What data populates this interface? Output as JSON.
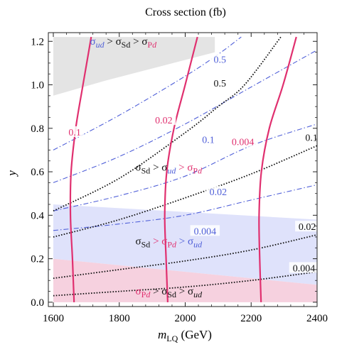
{
  "chart_data": {
    "type": "line",
    "title": "Cross section (fb)",
    "xlabel_main": "m",
    "xlabel_sub": "LQ",
    "xlabel_unit": " (GeV)",
    "ylabel": "y",
    "xlim": [
      1600,
      2400
    ],
    "ylim": [
      -0.02,
      1.24
    ],
    "xticks": [
      "1600",
      "1800",
      "2000",
      "2200",
      "2400"
    ],
    "yticks": [
      "0.0",
      "0.2",
      "0.4",
      "0.6",
      "0.8",
      "1.0",
      "1.2"
    ],
    "colors": {
      "Pd": "#e0306f",
      "ud": "#4f5fd8",
      "Sd": "#111111",
      "region_gray": "#e4e4e4",
      "region_blue": "#dfe2fb",
      "region_pink": "#f6d1df"
    },
    "regions": [
      {
        "id": "gray",
        "polygon": [
          [
            1600,
            1.18
          ],
          [
            1600,
            0.95
          ],
          [
            1760,
            1.02
          ],
          [
            2090,
            1.15
          ],
          [
            2090,
            1.22
          ],
          [
            1600,
            1.22
          ]
        ]
      },
      {
        "id": "blue",
        "polygon": [
          [
            1600,
            0.45
          ],
          [
            2400,
            0.38
          ],
          [
            2400,
            0.08
          ],
          [
            1600,
            0.2
          ]
        ]
      },
      {
        "id": "pink",
        "polygon": [
          [
            1600,
            0.2
          ],
          [
            2400,
            0.08
          ],
          [
            2400,
            0.0
          ],
          [
            1600,
            0.0
          ]
        ]
      }
    ],
    "series": [
      {
        "group": "Pd",
        "style": "solid",
        "label": "0.1",
        "points": [
          [
            1663,
            0.0
          ],
          [
            1658,
            0.2
          ],
          [
            1652,
            0.4
          ],
          [
            1654,
            0.6
          ],
          [
            1668,
            0.8
          ],
          [
            1690,
            1.0
          ],
          [
            1715,
            1.22
          ]
        ]
      },
      {
        "group": "Pd",
        "style": "solid",
        "label": "0.02",
        "points": [
          [
            1947,
            0.0
          ],
          [
            1942,
            0.2
          ],
          [
            1938,
            0.4
          ],
          [
            1944,
            0.6
          ],
          [
            1966,
            0.8
          ],
          [
            2000,
            1.0
          ],
          [
            2037,
            1.22
          ]
        ]
      },
      {
        "group": "Pd",
        "style": "solid",
        "label": "0.004",
        "points": [
          [
            2230,
            0.0
          ],
          [
            2226,
            0.2
          ],
          [
            2224,
            0.4
          ],
          [
            2231,
            0.6
          ],
          [
            2255,
            0.8
          ],
          [
            2297,
            1.0
          ],
          [
            2337,
            1.22
          ]
        ]
      },
      {
        "group": "ud",
        "style": "dashdot",
        "label": "0.5",
        "points": [
          [
            1600,
            0.7
          ],
          [
            1800,
            0.86
          ],
          [
            2000,
            1.04
          ],
          [
            2100,
            1.14
          ],
          [
            2170,
            1.22
          ]
        ]
      },
      {
        "group": "ud",
        "style": "dashdot",
        "label": "0.1",
        "points": [
          [
            1600,
            0.55
          ],
          [
            1800,
            0.67
          ],
          [
            2000,
            0.82
          ],
          [
            2200,
            0.99
          ],
          [
            2400,
            1.16
          ]
        ]
      },
      {
        "group": "ud",
        "style": "dashdot",
        "label": "0.02",
        "points": [
          [
            1600,
            0.42
          ],
          [
            1800,
            0.49
          ],
          [
            2000,
            0.58
          ],
          [
            2200,
            0.72
          ],
          [
            2400,
            0.82
          ]
        ]
      },
      {
        "group": "ud",
        "style": "dashdot",
        "label": "0.004",
        "points": [
          [
            1600,
            0.33
          ],
          [
            1800,
            0.36
          ],
          [
            2000,
            0.4
          ],
          [
            2200,
            0.47
          ],
          [
            2400,
            0.54
          ]
        ]
      },
      {
        "group": "Sd",
        "style": "dotted",
        "label": "0.5",
        "points": [
          [
            1600,
            0.42
          ],
          [
            1800,
            0.57
          ],
          [
            2000,
            0.78
          ],
          [
            2100,
            0.9
          ],
          [
            2180,
            1.0
          ],
          [
            2290,
            1.22
          ]
        ]
      },
      {
        "group": "Sd",
        "style": "dotted",
        "label": "0.1",
        "points": [
          [
            1600,
            0.3
          ],
          [
            1800,
            0.38
          ],
          [
            2000,
            0.48
          ],
          [
            2200,
            0.59
          ],
          [
            2400,
            0.72
          ]
        ]
      },
      {
        "group": "Sd",
        "style": "dotted",
        "label": "0.02",
        "points": [
          [
            1600,
            0.11
          ],
          [
            1800,
            0.15
          ],
          [
            2000,
            0.19
          ],
          [
            2200,
            0.24
          ],
          [
            2400,
            0.31
          ]
        ]
      },
      {
        "group": "Sd",
        "style": "dotted",
        "label": "0.004",
        "points": [
          [
            1600,
            0.03
          ],
          [
            1800,
            0.05
          ],
          [
            2000,
            0.07
          ],
          [
            2200,
            0.1
          ],
          [
            2400,
            0.14
          ]
        ]
      }
    ],
    "curve_labels": [
      {
        "group": "Pd",
        "text": "0.1",
        "at": [
          1665,
          0.78
        ]
      },
      {
        "group": "Pd",
        "text": "0.02",
        "at": [
          1935,
          0.835
        ]
      },
      {
        "group": "Pd",
        "text": "0.004",
        "at": [
          2175,
          0.735
        ]
      },
      {
        "group": "ud",
        "text": "0.5",
        "at": [
          2105,
          1.115
        ]
      },
      {
        "group": "ud",
        "text": "0.1",
        "at": [
          2070,
          0.745
        ]
      },
      {
        "group": "ud",
        "text": "0.02",
        "at": [
          2100,
          0.505
        ]
      },
      {
        "group": "ud",
        "text": "0.004",
        "at": [
          2060,
          0.325
        ]
      },
      {
        "group": "Sd",
        "text": "0.5",
        "at": [
          2105,
          1.005
        ]
      },
      {
        "group": "Sd",
        "text": "0.1",
        "at": [
          2383,
          0.755
        ]
      },
      {
        "group": "Sd",
        "text": "0.02",
        "at": [
          2370,
          0.345
        ]
      },
      {
        "group": "Sd",
        "text": "0.004",
        "at": [
          2360,
          0.155
        ]
      }
    ],
    "annotations": [
      {
        "id": "top",
        "at": [
          1812,
          1.185
        ],
        "parts": [
          {
            "t": "σ",
            "c": "ud"
          },
          {
            "t": "ud",
            "c": "ud",
            "sub": true,
            "it": true
          },
          {
            "t": " > σ",
            "c": "Sd"
          },
          {
            "t": "Sd",
            "c": "Sd",
            "sub": true
          },
          {
            "t": " > σ",
            "c": "Sd"
          },
          {
            "t": "P",
            "c": "Pd",
            "sub": true
          },
          {
            "t": "d",
            "c": "Pd",
            "sub": true,
            "it": true
          }
        ]
      },
      {
        "id": "mid",
        "at": [
          1950,
          0.605
        ],
        "parts": [
          {
            "t": "σ",
            "c": "Sd"
          },
          {
            "t": "Sd",
            "c": "Sd",
            "sub": true
          },
          {
            "t": " > σ",
            "c": "Sd"
          },
          {
            "t": "ud",
            "c": "ud",
            "sub": true,
            "it": true
          },
          {
            "t": " > σ",
            "c": "Pd"
          },
          {
            "t": "P",
            "c": "Pd",
            "sub": true
          },
          {
            "t": "d",
            "c": "Pd",
            "sub": true,
            "it": true
          }
        ]
      },
      {
        "id": "low",
        "at": [
          1950,
          0.265
        ],
        "parts": [
          {
            "t": "σ",
            "c": "Sd"
          },
          {
            "t": "Sd",
            "c": "Sd",
            "sub": true
          },
          {
            "t": " > σ",
            "c": "Pd"
          },
          {
            "t": "P",
            "c": "Pd",
            "sub": true
          },
          {
            "t": "d",
            "c": "Pd",
            "sub": true,
            "it": true
          },
          {
            "t": " > σ",
            "c": "ud"
          },
          {
            "t": "ud",
            "c": "ud",
            "sub": true,
            "it": true
          }
        ]
      },
      {
        "id": "bottom",
        "at": [
          1950,
          0.035
        ],
        "parts": [
          {
            "t": "σ",
            "c": "Pd"
          },
          {
            "t": "P",
            "c": "Pd",
            "sub": true
          },
          {
            "t": "d",
            "c": "Pd",
            "sub": true,
            "it": true
          },
          {
            "t": " > σ",
            "c": "Sd"
          },
          {
            "t": "Sd",
            "c": "Sd",
            "sub": true
          },
          {
            "t": " > σ",
            "c": "Sd"
          },
          {
            "t": "ud",
            "c": "Sd",
            "sub": true,
            "it": true
          }
        ]
      }
    ]
  }
}
